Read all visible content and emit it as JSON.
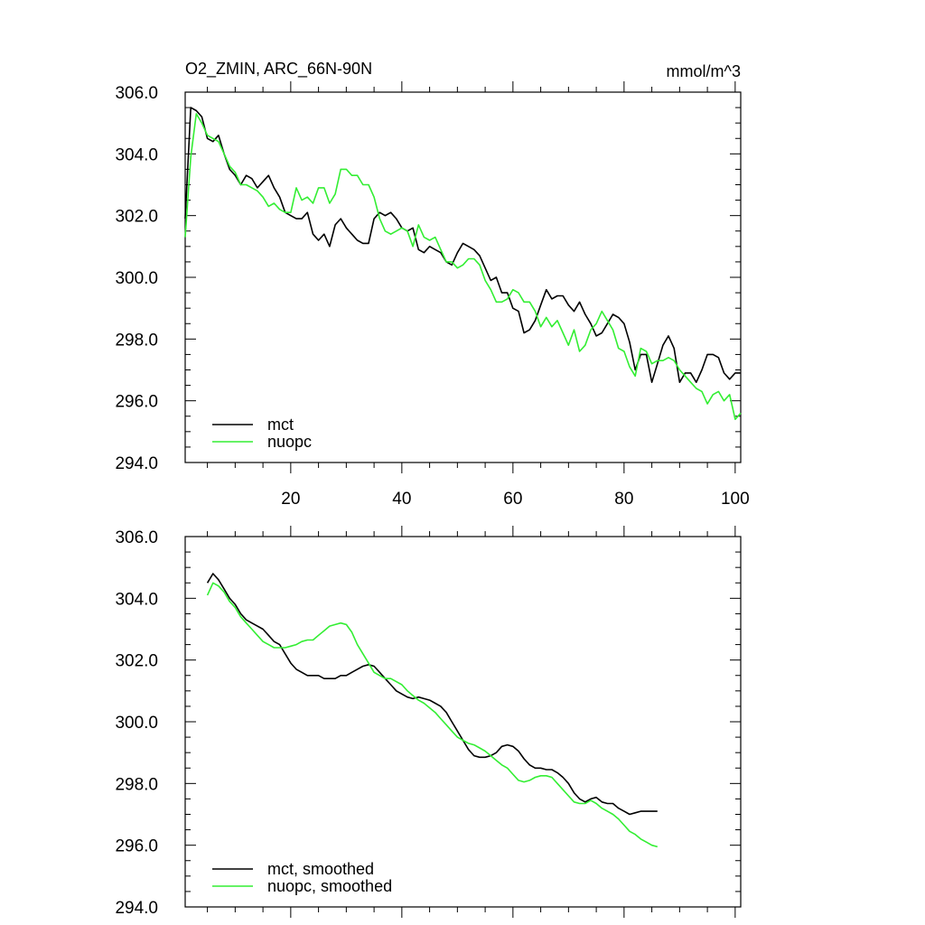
{
  "chart_data": [
    {
      "type": "line",
      "title": "O2_ZMIN, ARC_66N-90N",
      "units": "mmol/m^3",
      "xlim": [
        1,
        101
      ],
      "ylim": [
        294,
        306
      ],
      "xticks": [
        20,
        40,
        60,
        80,
        100
      ],
      "x_tick_labels": [
        "20",
        "40",
        "60",
        "80",
        "100"
      ],
      "y_tick_labels": [
        "306.0",
        "304.0",
        "302.0",
        "300.0",
        "298.0",
        "296.0",
        "294.0"
      ],
      "legend": "bottom-left",
      "series": [
        {
          "name": "mct",
          "color": "#000000",
          "x_start": 1,
          "values": [
            301.9,
            305.5,
            305.4,
            305.2,
            304.5,
            304.4,
            304.6,
            304.0,
            303.5,
            303.3,
            303.0,
            303.3,
            303.2,
            302.9,
            303.1,
            303.3,
            302.9,
            302.6,
            302.1,
            302.0,
            301.9,
            301.9,
            302.1,
            301.4,
            301.2,
            301.4,
            301.0,
            301.7,
            301.9,
            301.6,
            301.4,
            301.2,
            301.1,
            301.1,
            301.9,
            302.1,
            302.0,
            302.1,
            301.9,
            301.6,
            301.5,
            301.6,
            300.9,
            300.8,
            301.0,
            300.9,
            300.8,
            300.5,
            300.4,
            300.8,
            301.1,
            301.0,
            300.9,
            300.7,
            300.3,
            299.9,
            300.0,
            299.5,
            299.5,
            299.0,
            298.9,
            298.2,
            298.3,
            298.6,
            299.1,
            299.6,
            299.3,
            299.4,
            299.4,
            299.1,
            298.9,
            299.2,
            298.8,
            298.5,
            298.1,
            298.2,
            298.5,
            298.8,
            298.7,
            298.5,
            297.9,
            297.0,
            297.5,
            297.5,
            296.6,
            297.2,
            297.8,
            298.1,
            297.7,
            296.6,
            296.9,
            296.9,
            296.6,
            297.0,
            297.5,
            297.5,
            297.4,
            296.9,
            296.7,
            296.9,
            296.9
          ]
        },
        {
          "name": "nuopc",
          "color": "#33ee33",
          "x_start": 1,
          "values": [
            301.3,
            303.9,
            305.3,
            305.0,
            304.6,
            304.5,
            304.4,
            304.0,
            303.6,
            303.4,
            303.0,
            303.0,
            302.9,
            302.8,
            302.6,
            302.3,
            302.4,
            302.2,
            302.1,
            302.1,
            302.9,
            302.5,
            302.6,
            302.4,
            302.9,
            302.9,
            302.4,
            302.7,
            303.5,
            303.5,
            303.3,
            303.3,
            303.0,
            303.0,
            302.6,
            301.9,
            301.5,
            301.4,
            301.5,
            301.6,
            301.5,
            301.0,
            301.7,
            301.3,
            301.2,
            301.3,
            300.9,
            300.5,
            300.5,
            300.3,
            300.4,
            300.6,
            300.6,
            300.4,
            299.9,
            299.6,
            299.2,
            299.2,
            299.3,
            299.6,
            299.5,
            299.2,
            299.2,
            298.9,
            298.4,
            298.7,
            298.4,
            298.6,
            298.2,
            297.8,
            298.3,
            297.6,
            297.8,
            298.3,
            298.5,
            298.9,
            298.6,
            298.3,
            297.7,
            297.6,
            297.1,
            296.8,
            297.7,
            297.6,
            297.2,
            297.3,
            297.3,
            297.4,
            297.3,
            297.0,
            296.8,
            296.6,
            296.4,
            296.3,
            295.9,
            296.2,
            296.3,
            296.0,
            296.2,
            295.4,
            295.6
          ]
        }
      ]
    },
    {
      "type": "line",
      "title": "",
      "xlim": [
        1,
        101
      ],
      "ylim": [
        294,
        306
      ],
      "y_tick_labels": [
        "306.0",
        "304.0",
        "302.0",
        "300.0",
        "298.0",
        "296.0",
        "294.0"
      ],
      "legend": "bottom-left",
      "series": [
        {
          "name": "mct, smoothed",
          "color": "#000000",
          "x_start": 5,
          "values": [
            304.5,
            304.8,
            304.6,
            304.3,
            304.0,
            303.8,
            303.5,
            303.3,
            303.2,
            303.1,
            303.0,
            302.8,
            302.6,
            302.5,
            302.2,
            301.9,
            301.7,
            301.6,
            301.5,
            301.5,
            301.5,
            301.4,
            301.4,
            301.4,
            301.5,
            301.5,
            301.6,
            301.7,
            301.8,
            301.85,
            301.8,
            301.6,
            301.4,
            301.2,
            301.0,
            300.9,
            300.8,
            300.75,
            300.8,
            300.75,
            300.7,
            300.6,
            300.5,
            300.3,
            300.0,
            299.7,
            299.4,
            299.1,
            298.9,
            298.85,
            298.85,
            298.9,
            299.0,
            299.2,
            299.25,
            299.2,
            299.05,
            298.8,
            298.6,
            298.5,
            298.5,
            298.45,
            298.45,
            298.35,
            298.2,
            298.0,
            297.7,
            297.5,
            297.4,
            297.5,
            297.55,
            297.4,
            297.35,
            297.35,
            297.2,
            297.1,
            297.0,
            297.05,
            297.1,
            297.1,
            297.1,
            297.1
          ]
        },
        {
          "name": "nuopc, smoothed",
          "color": "#33ee33",
          "x_start": 5,
          "values": [
            304.1,
            304.5,
            304.4,
            304.2,
            303.9,
            303.7,
            303.4,
            303.2,
            303.0,
            302.8,
            302.6,
            302.5,
            302.4,
            302.4,
            302.4,
            302.45,
            302.5,
            302.6,
            302.65,
            302.65,
            302.8,
            302.95,
            303.1,
            303.15,
            303.2,
            303.15,
            302.9,
            302.5,
            302.2,
            301.9,
            301.6,
            301.5,
            301.4,
            301.4,
            301.3,
            301.2,
            301.0,
            300.85,
            300.7,
            300.6,
            300.45,
            300.3,
            300.1,
            299.9,
            299.7,
            299.5,
            299.4,
            299.3,
            299.25,
            299.15,
            299.05,
            298.9,
            298.75,
            298.6,
            298.5,
            298.3,
            298.1,
            298.05,
            298.1,
            298.2,
            298.25,
            298.25,
            298.2,
            298.0,
            297.8,
            297.6,
            297.4,
            297.35,
            297.35,
            297.45,
            297.35,
            297.2,
            297.1,
            297.0,
            296.85,
            296.65,
            296.45,
            296.35,
            296.2,
            296.1,
            296.0,
            295.95
          ]
        }
      ]
    }
  ]
}
